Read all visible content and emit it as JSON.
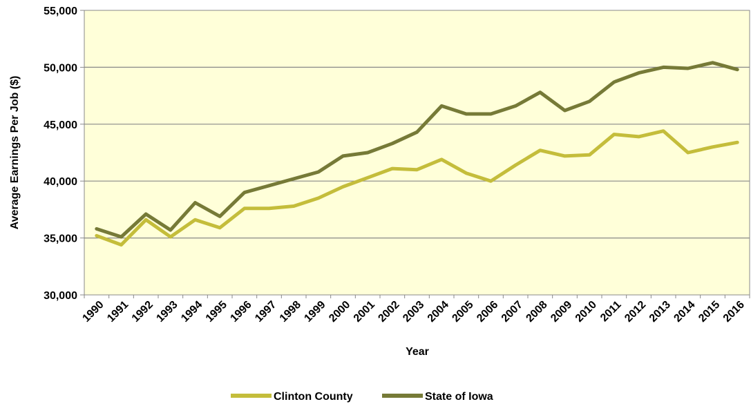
{
  "chart_data": {
    "type": "line",
    "title": "",
    "xlabel": "Year",
    "ylabel": "Average Earnings Per Job ($)",
    "ylim": [
      30000,
      55000
    ],
    "yticks": [
      30000,
      35000,
      40000,
      45000,
      50000,
      55000
    ],
    "ytick_labels": [
      "30,000",
      "35,000",
      "40,000",
      "45,000",
      "50,000",
      "55,000"
    ],
    "x": [
      "1990",
      "1991",
      "1992",
      "1993",
      "1994",
      "1995",
      "1996",
      "1997",
      "1998",
      "1999",
      "2000",
      "2001",
      "2002",
      "2003",
      "2004",
      "2005",
      "2006",
      "2007",
      "2008",
      "2009",
      "2010",
      "2011",
      "2012",
      "2013",
      "2014",
      "2015",
      "2016"
    ],
    "grid": "horizontal",
    "background": "#ffffd9",
    "legend_position": "bottom",
    "series": [
      {
        "name": "Clinton County",
        "color": "#c4bd3b",
        "values": [
          35200,
          34400,
          36600,
          35100,
          36600,
          35900,
          37600,
          37600,
          37800,
          38500,
          39500,
          40300,
          41100,
          41000,
          41900,
          40700,
          40000,
          41400,
          42700,
          42200,
          42300,
          44100,
          43900,
          44400,
          42500,
          43000,
          43400
        ]
      },
      {
        "name": "State of Iowa",
        "color": "#767a37",
        "values": [
          35800,
          35100,
          37100,
          35700,
          38100,
          36900,
          39000,
          39600,
          40200,
          40800,
          42200,
          42500,
          43300,
          44300,
          46600,
          45900,
          45900,
          46600,
          47800,
          46200,
          47000,
          48700,
          49500,
          50000,
          49900,
          50400,
          49800
        ]
      }
    ]
  }
}
